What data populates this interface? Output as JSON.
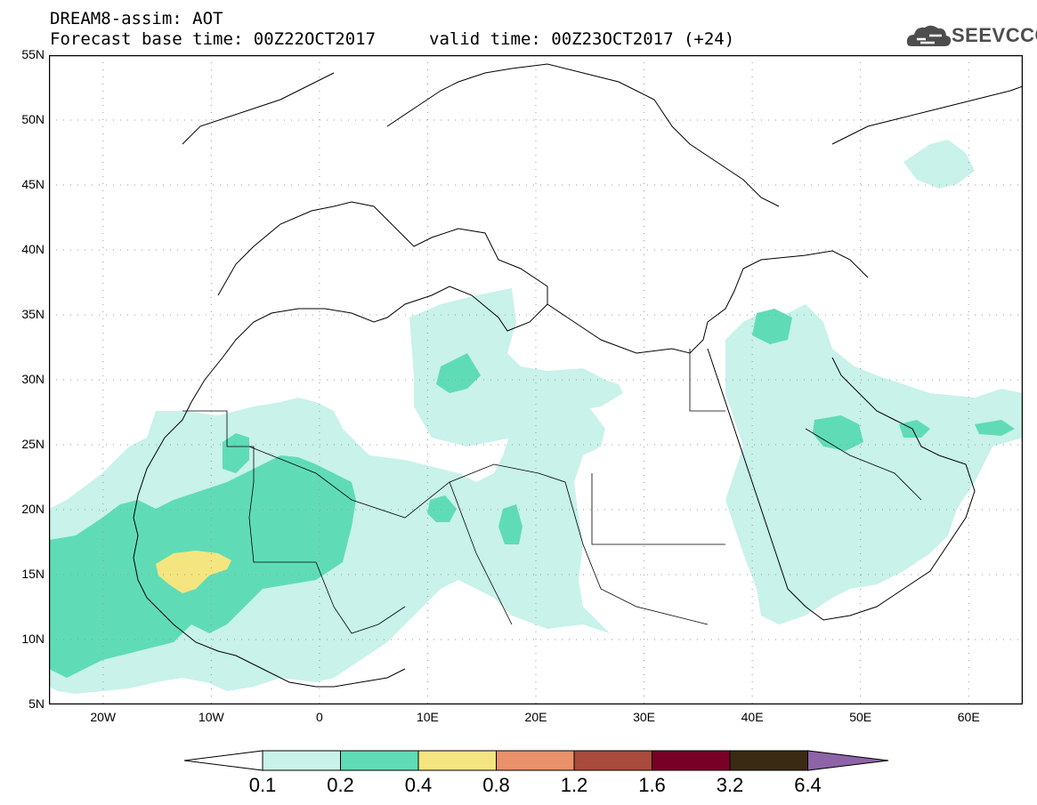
{
  "header": {
    "title": "DREAM8-assim: AOT",
    "base_time": "Forecast base time: 00Z22OCT2017",
    "valid_time": "valid time: 00Z23OCT2017 (+24)"
  },
  "logo": {
    "name": "cloud-logo",
    "text": "SEEVCCC"
  },
  "axes": {
    "y_ticks": [
      "55N",
      "50N",
      "45N",
      "40N",
      "35N",
      "30N",
      "25N",
      "20N",
      "15N",
      "10N",
      "5N"
    ],
    "x_ticks": [
      "20W",
      "10W",
      "0",
      "10E",
      "20E",
      "30E",
      "40E",
      "50E",
      "60E"
    ],
    "lon_range": [
      -25,
      65
    ],
    "lat_range": [
      5,
      55
    ],
    "grid": "dotted"
  },
  "colorbar": {
    "ticks": [
      "0.1",
      "0.2",
      "0.4",
      "0.8",
      "1.2",
      "1.6",
      "3.2",
      "6.4"
    ],
    "colors": [
      "#c8f2ea",
      "#5fdcb6",
      "#f4e580",
      "#e8916a",
      "#a84a3c",
      "#780026",
      "#3a2a14",
      "#8e64a8"
    ]
  }
}
